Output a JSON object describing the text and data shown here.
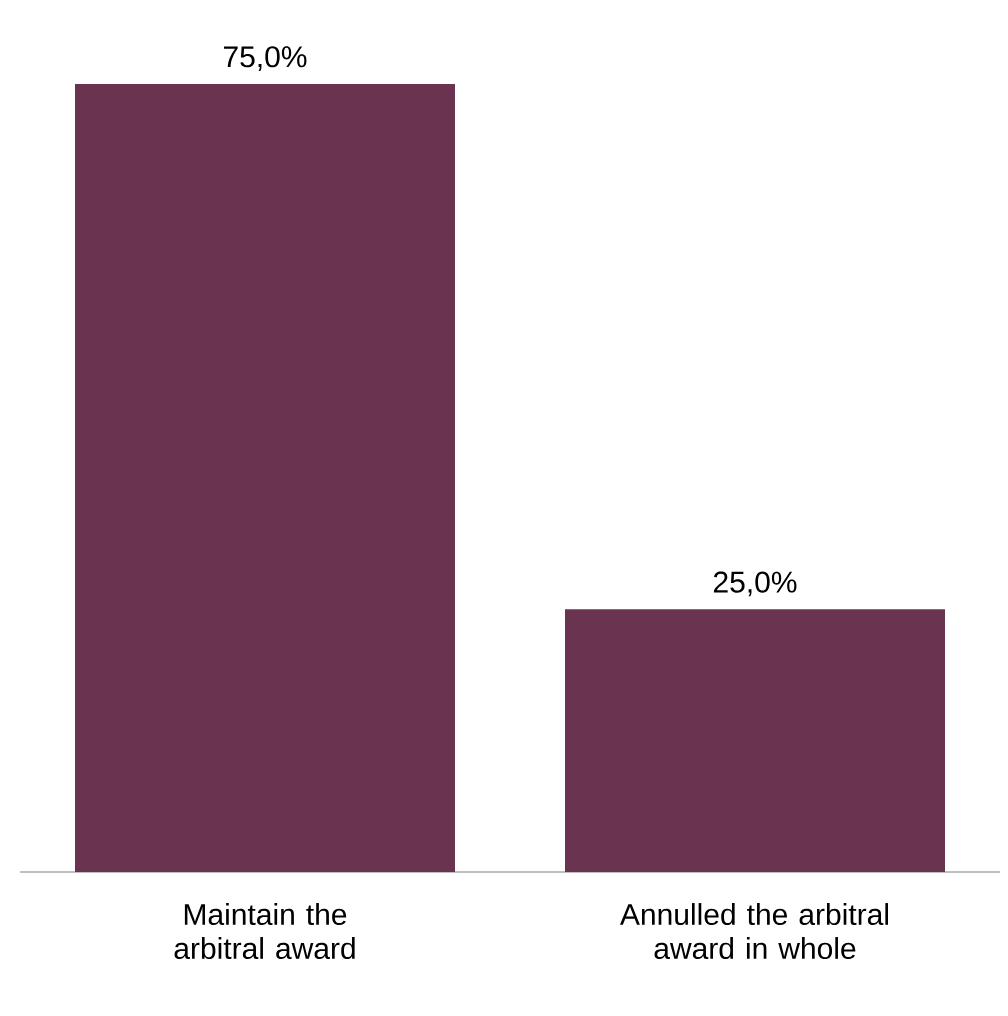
{
  "chart_data": {
    "type": "bar",
    "categories": [
      "Maintain the arbitral award",
      "Annulled the arbitral award in whole"
    ],
    "values": [
      75,
      25
    ],
    "color": "#6a3350",
    "value_labels": [
      "75,0%",
      "25,0%"
    ]
  }
}
